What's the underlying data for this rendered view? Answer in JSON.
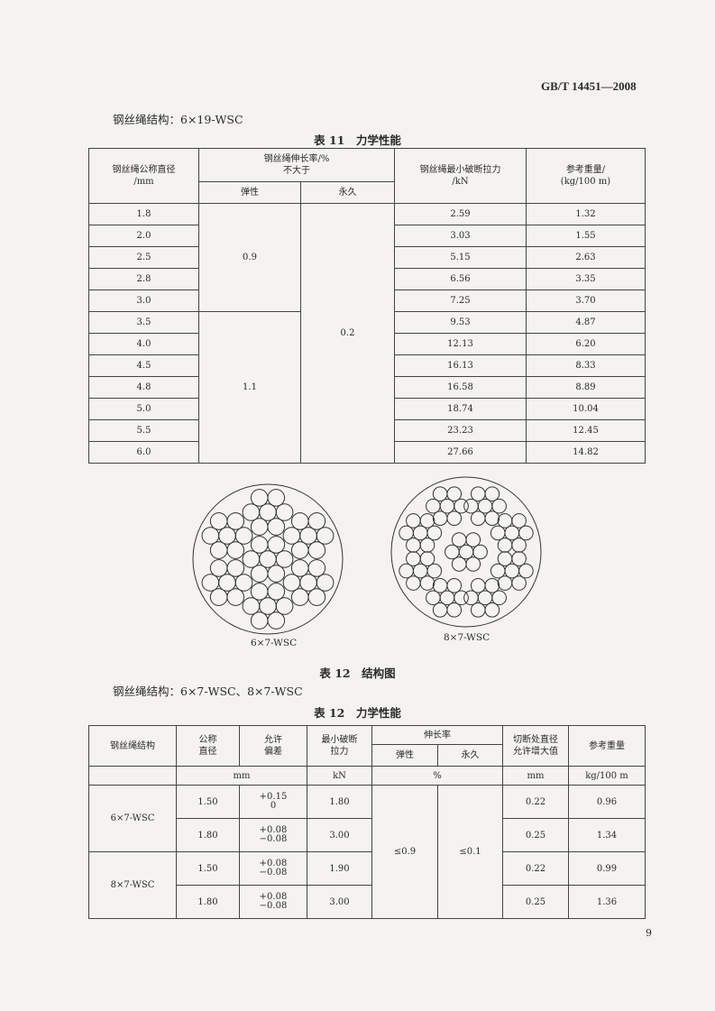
{
  "header": {
    "standard": "GB/T 14451—2008"
  },
  "section1": {
    "structure_label": "钢丝绳结构：6×19-WSC"
  },
  "table11": {
    "caption": "表 11　力学性能",
    "headers": {
      "diameter": "钢丝绳公称直径",
      "diameter_unit": "/mm",
      "elongation": "钢丝绳伸长率/%",
      "elongation_sub": "不大于",
      "elastic": "弹性",
      "permanent": "永久",
      "breaking": "钢丝绳最小破断拉力",
      "breaking_unit": "/kN",
      "weight": "参考重量/",
      "weight_unit": "(kg/100 m)"
    },
    "elastic_groups": [
      "0.9",
      "1.1"
    ],
    "permanent_value": "0.2",
    "rows": [
      {
        "d": "1.8",
        "f": "2.59",
        "w": "1.32"
      },
      {
        "d": "2.0",
        "f": "3.03",
        "w": "1.55"
      },
      {
        "d": "2.5",
        "f": "5.15",
        "w": "2.63"
      },
      {
        "d": "2.8",
        "f": "6.56",
        "w": "3.35"
      },
      {
        "d": "3.0",
        "f": "7.25",
        "w": "3.70"
      },
      {
        "d": "3.5",
        "f": "9.53",
        "w": "4.87"
      },
      {
        "d": "4.0",
        "f": "12.13",
        "w": "6.20"
      },
      {
        "d": "4.5",
        "f": "16.13",
        "w": "8.33"
      },
      {
        "d": "4.8",
        "f": "16.58",
        "w": "8.89"
      },
      {
        "d": "5.0",
        "f": "18.74",
        "w": "10.04"
      },
      {
        "d": "5.5",
        "f": "23.23",
        "w": "12.45"
      },
      {
        "d": "6.0",
        "f": "27.66",
        "w": "14.82"
      }
    ]
  },
  "diagrams": {
    "left_label": "6×7-WSC",
    "right_label": "8×7-WSC",
    "caption": "表 12　结构图"
  },
  "section2": {
    "structure_label": "钢丝绳结构：6×7-WSC、8×7-WSC"
  },
  "table12": {
    "caption": "表 12　力学性能",
    "headers": {
      "structure": "钢丝绳结构",
      "nominal": "公称",
      "nominal2": "直径",
      "tol": "允许",
      "tol2": "偏差",
      "break": "最小破断",
      "break2": "拉力",
      "elong": "伸长率",
      "elastic": "弹性",
      "permanent": "永久",
      "cut": "切断处直径",
      "cut2": "允许增大值",
      "weight": "参考重量",
      "u_mm": "mm",
      "u_kn": "kN",
      "u_pct": "%",
      "u_mm2": "mm",
      "u_w": "kg/100 m"
    },
    "elastic_value": "≤0.9",
    "permanent_value": "≤0.1",
    "groups": [
      {
        "name": "6×7-WSC",
        "rows": [
          {
            "d": "1.50",
            "tp": "+0.15",
            "tm": "0",
            "f": "1.80",
            "c": "0.22",
            "w": "0.96"
          },
          {
            "d": "1.80",
            "tp": "+0.08",
            "tm": "−0.08",
            "f": "3.00",
            "c": "0.25",
            "w": "1.34"
          }
        ]
      },
      {
        "name": "8×7-WSC",
        "rows": [
          {
            "d": "1.50",
            "tp": "+0.08",
            "tm": "−0.08",
            "f": "1.90",
            "c": "0.22",
            "w": "0.99"
          },
          {
            "d": "1.80",
            "tp": "+0.08",
            "tm": "−0.08",
            "f": "3.00",
            "c": "0.25",
            "w": "1.36"
          }
        ]
      }
    ]
  },
  "footer": {
    "page_number": "9"
  }
}
